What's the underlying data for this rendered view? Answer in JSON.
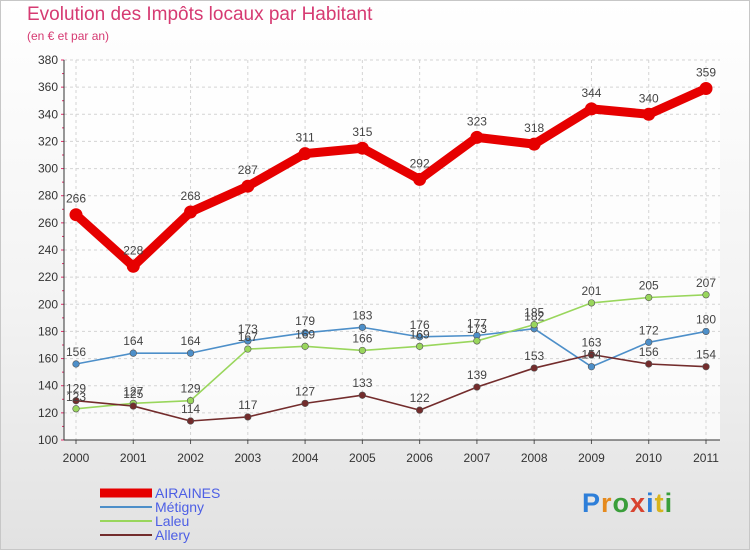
{
  "header": {
    "title": "Evolution des Impôts locaux par Habitant",
    "subtitle": "(en € et par an)"
  },
  "logo": {
    "text": "Proxiti",
    "letter_colors": [
      "#2e7fd9",
      "#e58a1e",
      "#3a9e3a",
      "#d8432f",
      "#2e7fd9",
      "#d8b41e",
      "#3a9e3a"
    ]
  },
  "chart_data": {
    "type": "line",
    "title": "Evolution des Impôts locaux par Habitant",
    "subtitle": "(en € et par an)",
    "xlabel": "",
    "ylabel": "",
    "x": [
      "2000",
      "2001",
      "2002",
      "2003",
      "2004",
      "2005",
      "2006",
      "2007",
      "2008",
      "2009",
      "2010",
      "2011"
    ],
    "ylim": [
      100,
      380
    ],
    "yticks": [
      100,
      120,
      140,
      160,
      180,
      200,
      220,
      240,
      260,
      280,
      300,
      320,
      340,
      360,
      380
    ],
    "grid": true,
    "legend_position": "bottom-left",
    "series": [
      {
        "name": "AIRAINES",
        "color": "#e60000",
        "label_color": "#4c5ee5",
        "emphasis": "thick",
        "values": [
          266,
          228,
          268,
          287,
          311,
          315,
          292,
          323,
          318,
          344,
          340,
          359
        ]
      },
      {
        "name": "Métigny",
        "color": "#4d8fc9",
        "label_color": "#4c5ee5",
        "emphasis": "thin",
        "values": [
          156,
          164,
          164,
          173,
          179,
          183,
          176,
          177,
          182,
          154,
          172,
          180
        ],
        "labels": [
          "156",
          "164",
          "164",
          "173",
          "179",
          "183",
          "176",
          "177",
          "182",
          "154",
          "172",
          "180"
        ]
      },
      {
        "name": "Laleu",
        "color": "#99d65c",
        "label_color": "#4c5ee5",
        "emphasis": "thin",
        "values": [
          123,
          127,
          129,
          167,
          169,
          166,
          169,
          173,
          185,
          201,
          205,
          207
        ],
        "labels": [
          "123",
          "127",
          "129",
          "167",
          "169",
          "166",
          "169",
          "173",
          "185",
          "201",
          "205",
          "207"
        ]
      },
      {
        "name": "Allery",
        "color": "#732c2c",
        "label_color": "#4c5ee5",
        "emphasis": "thin",
        "values": [
          129,
          125,
          114,
          117,
          127,
          133,
          122,
          139,
          153,
          163,
          156,
          154
        ],
        "labels": [
          "129",
          "125",
          "114",
          "117",
          "127",
          "133",
          "122",
          "139",
          "153",
          "163",
          "156",
          "154"
        ]
      }
    ]
  }
}
